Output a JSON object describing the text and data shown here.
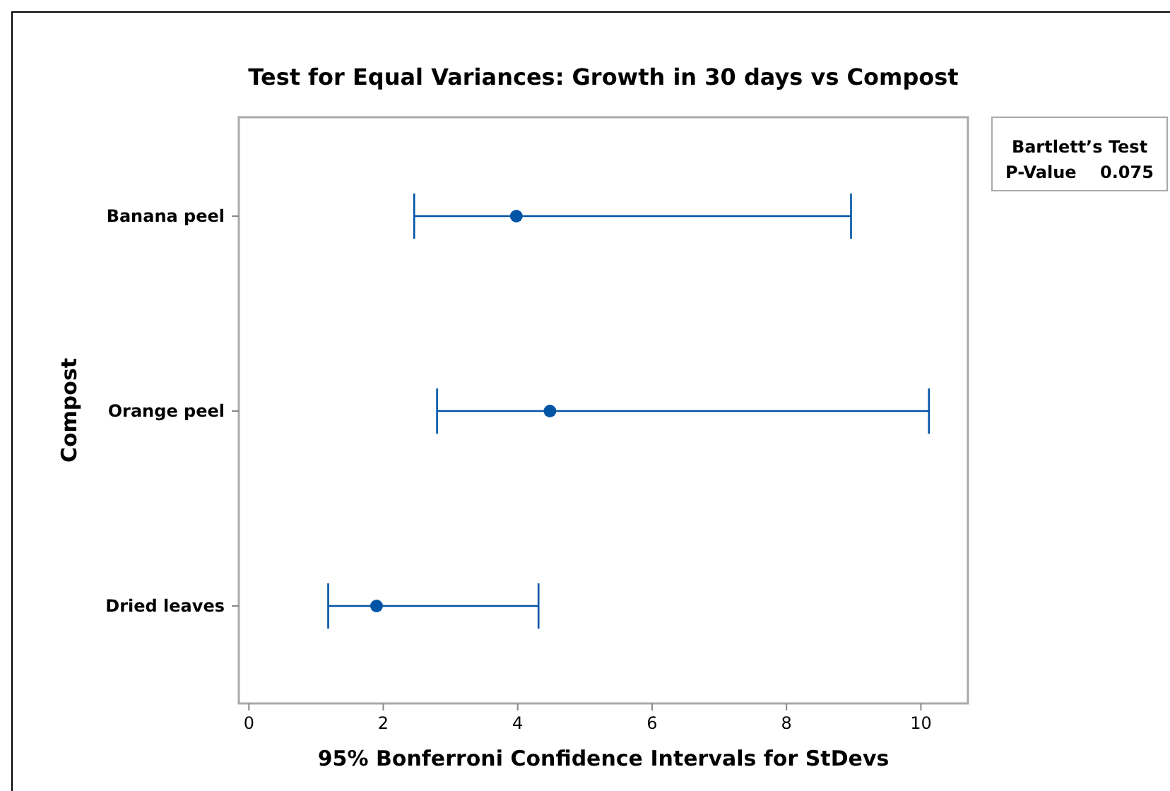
{
  "chart_data": {
    "type": "scatter",
    "orientation": "horizontal",
    "title": "Test for Equal Variances: Growth in 30 days vs Compost",
    "xlabel": "95% Bonferroni Confidence Intervals for StDevs",
    "ylabel": "Compost",
    "categories": [
      "Banana peel",
      "Orange peel",
      "Dried leaves"
    ],
    "values": [
      3.98,
      4.48,
      1.9
    ],
    "errors": [
      [
        2.46,
        8.96
      ],
      [
        2.8,
        10.12
      ],
      [
        1.18,
        4.31
      ]
    ],
    "color": "#0054a6",
    "marker": "circle",
    "xlim": [
      -0.15,
      10.7
    ],
    "xticks": [
      0,
      2,
      4,
      6,
      8,
      10
    ],
    "grid": false,
    "annotations": [
      "Bartlett’s Test",
      "P-Value    0.075"
    ]
  }
}
